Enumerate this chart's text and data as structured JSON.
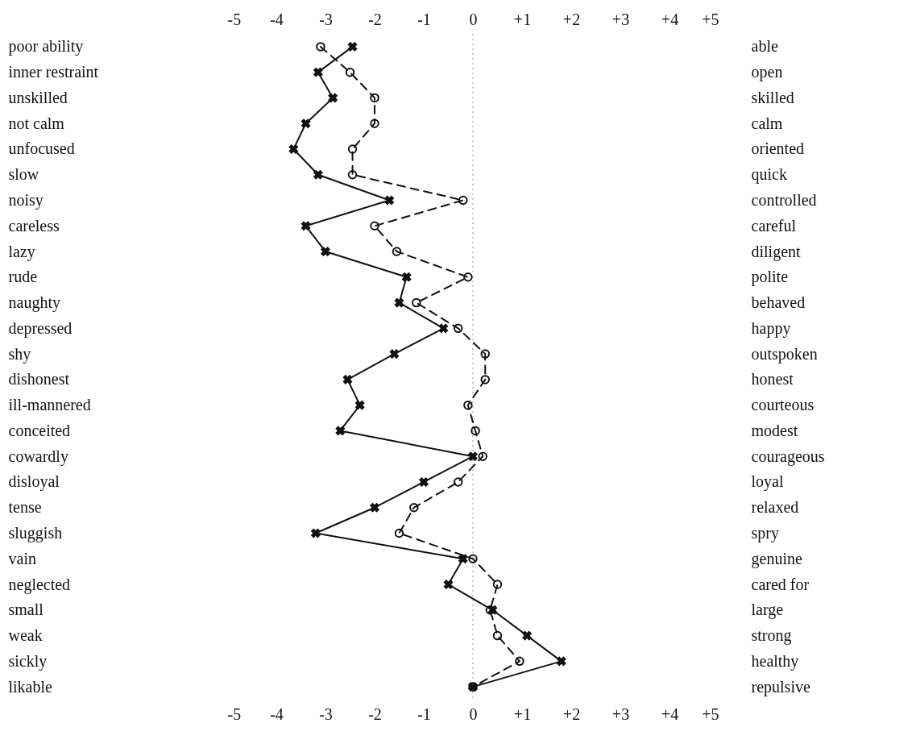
{
  "chart_data": {
    "type": "line",
    "orientation": "horizontal",
    "categories": [
      "poor  ability",
      "inner  restraint",
      "unskilled",
      "not  calm",
      "unfocused",
      "slow",
      "noisy",
      "careless",
      "lazy",
      "rude",
      "naughty",
      "depressed",
      "shy",
      "dishonest",
      "ill-mannered",
      "conceited",
      "cowardly",
      "disloyal",
      "tense",
      "sluggish",
      "vain",
      "neglected",
      "small",
      "weak",
      "sickly",
      "likable"
    ],
    "y2_categories": [
      "able",
      "open",
      "skilled",
      "calm",
      "oriented",
      "quick",
      "controlled",
      "careful",
      "diligent",
      "polite",
      "behaved",
      "happy",
      "outspoken",
      "honest",
      "courteous",
      "modest",
      "courageous",
      "loyal",
      "relaxed",
      "spry",
      "genuine",
      "cared  for",
      "large",
      "strong",
      "healthy",
      "repulsive"
    ],
    "series": [
      {
        "color": "#111111",
        "marker": "cross",
        "line_style": "solid",
        "values": [
          -2.45,
          -3.15,
          -2.85,
          -3.4,
          -3.65,
          -3.15,
          -1.7,
          -3.4,
          -3.0,
          -1.35,
          -1.5,
          -0.6,
          -1.6,
          -2.55,
          -2.3,
          -2.7,
          0,
          -1.0,
          -2.0,
          -3.2,
          -0.2,
          -0.5,
          0.4,
          1.1,
          1.8,
          0
        ]
      },
      {
        "color": "#111111",
        "marker": "circle",
        "line_style": "dashed",
        "values": [
          -3.1,
          -2.5,
          -2.0,
          -2.0,
          -2.45,
          -2.45,
          -0.2,
          -2.0,
          -1.55,
          -0.1,
          -1.15,
          -0.3,
          0.25,
          0.25,
          -0.1,
          0.05,
          0.2,
          -0.3,
          -1.2,
          -1.5,
          0,
          0.5,
          0.35,
          0.5,
          0.95,
          0
        ]
      }
    ],
    "xlim": [
      -5,
      5
    ],
    "xticks": [
      -5,
      -4,
      -3,
      -2,
      -1,
      0,
      {
        "value": 1,
        "label": "+1"
      },
      {
        "value": 2,
        "label": "+2"
      },
      {
        "value": 3,
        "label": "+3"
      },
      {
        "value": 4,
        "label": "+4"
      },
      {
        "value": 5,
        "label": "+5"
      }
    ],
    "x2lim": [
      -5,
      5
    ],
    "x2ticks": [
      -5,
      -4,
      -3,
      -2,
      -1,
      0,
      {
        "value": 1,
        "label": "+1"
      },
      {
        "value": 2,
        "label": "+2"
      },
      {
        "value": 3,
        "label": "+3"
      },
      {
        "value": 4,
        "label": "+4"
      },
      {
        "value": 5,
        "label": "+5"
      }
    ],
    "ref_lines": [
      {
        "axis": "x",
        "value": 0,
        "color": "#bbbbbb",
        "line_style": "dotted"
      }
    ],
    "grid": false
  }
}
